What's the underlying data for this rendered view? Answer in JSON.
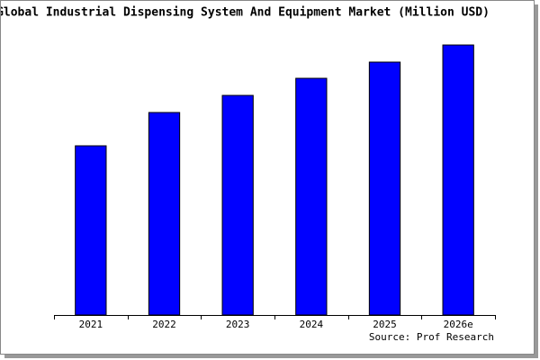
{
  "chart_data": {
    "type": "bar",
    "title": "Global Industrial Dispensing System And Equipment Market (Million USD)",
    "categories": [
      "2021",
      "2022",
      "2023",
      "2024",
      "2025",
      "2026e"
    ],
    "values": [
      188,
      225,
      244,
      263,
      281,
      300
    ],
    "color": "#0000ff",
    "ylim": [
      0,
      300
    ],
    "source": "Source: Prof Research"
  }
}
